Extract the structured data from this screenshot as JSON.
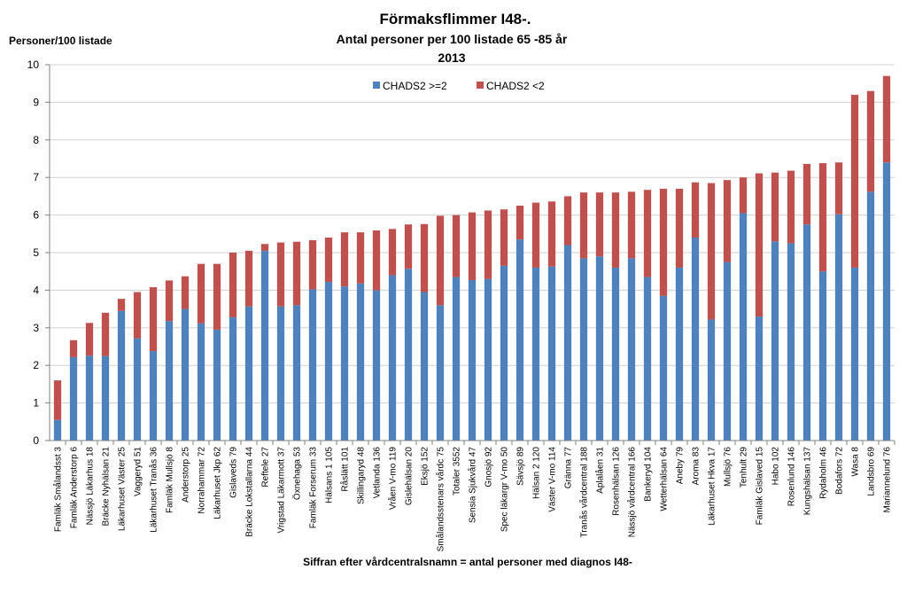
{
  "chart_data": {
    "type": "bar",
    "stacked": true,
    "title": "Förmaksflimmer I48-.",
    "subtitle": "Antal personer per 100 listade 65 -85 år",
    "year": "2013",
    "ylabel": "Personer/100 listade",
    "xlabel": "Siffran efter vårdcentralsnamn = antal personer med diagnos I48-",
    "ylim": [
      0,
      10
    ],
    "yticks": [
      "0",
      "1",
      "2",
      "3",
      "4",
      "5",
      "6",
      "7",
      "8",
      "9",
      "10"
    ],
    "grid": true,
    "legend_position": "top",
    "categories": [
      "Famläk Smålandsst  3",
      "Famläk Anderstorp 6",
      "Nässjö Läkarhus 18",
      "Bräcke Nyhälsan 21",
      "Läkarhuset Väster 25",
      "Vaggeryd  51",
      "Läkarhuset Tranås 36",
      "Famläk Mullsjö 8",
      "Anderstorp  25",
      "Norrahammar  72",
      "Läkarhuset Jkp 62",
      "Gislaveds  79",
      "Bräcke Lokstallarna 44",
      "Reftele  27",
      "Vrigstad Läkarmott 37",
      "Öxnehaga  53",
      "Famläk Forserum 33",
      "Hälsans 1  105",
      "Råslätt  101",
      "Skillingaryd  48",
      "Vetlanda  136",
      "Vråen V-mo 119",
      "Gislehälsan  20",
      "Eksjö  152",
      "Smålandsstenars vårdc 75",
      "Totaler 3552",
      "Sensia Sjukvård 47",
      "Gnosjö  92",
      "Spec läkargr V-mo 50",
      "Sävsjö  89",
      "Hälsan 2  120",
      "Väster V-mo 114",
      "Gränna  77",
      "Tranås vårdcentral 188",
      "Aplalåen  31",
      "Rosenhälsan  126",
      "Nässjö vårdcentral 166",
      "Bankeryd  104",
      "Wetterhälsan 64",
      "Aneby  79",
      "Aroma 83",
      "Läkarhuset Hkva 17",
      "Mullsjö  76",
      "Tenhult  29",
      "Famläk Gislaved 15",
      "Habo  102",
      "Rosenlund  146",
      "Kungshälsan 137",
      "Rydaholm  46",
      "Bodafors  72",
      "Wasa  8",
      "Landsbro  69",
      "Mariannelund  76"
    ],
    "series": [
      {
        "name": "CHADS2 >=2",
        "color": "#4F81BD",
        "values": [
          0.55,
          2.22,
          2.26,
          2.25,
          3.45,
          2.72,
          2.38,
          3.18,
          3.5,
          3.12,
          2.95,
          3.28,
          3.57,
          5.05,
          3.57,
          3.6,
          4.02,
          4.22,
          4.1,
          4.18,
          4.0,
          4.4,
          4.57,
          3.95,
          3.6,
          4.35,
          4.27,
          4.3,
          4.65,
          5.35,
          4.6,
          4.63,
          5.2,
          4.85,
          4.9,
          4.6,
          4.85,
          4.35,
          3.85,
          4.6,
          5.4,
          3.22,
          4.75,
          6.05,
          3.3,
          5.3,
          5.25,
          5.75,
          4.5,
          6.02,
          4.6,
          6.62,
          7.4
        ]
      },
      {
        "name": "CHADS2 <2",
        "color": "#C0504D",
        "values": [
          1.05,
          0.45,
          0.87,
          1.15,
          0.32,
          1.23,
          1.7,
          1.08,
          0.87,
          1.58,
          1.75,
          1.72,
          1.48,
          0.18,
          1.7,
          1.69,
          1.31,
          1.18,
          1.44,
          1.36,
          1.59,
          1.23,
          1.18,
          1.81,
          2.38,
          1.65,
          1.8,
          1.82,
          1.5,
          0.9,
          1.73,
          1.73,
          1.3,
          1.75,
          1.7,
          2.0,
          1.77,
          2.32,
          2.85,
          2.1,
          1.47,
          3.63,
          2.18,
          0.95,
          3.81,
          1.83,
          1.93,
          1.61,
          2.88,
          1.38,
          4.6,
          2.68,
          2.3
        ]
      }
    ]
  }
}
